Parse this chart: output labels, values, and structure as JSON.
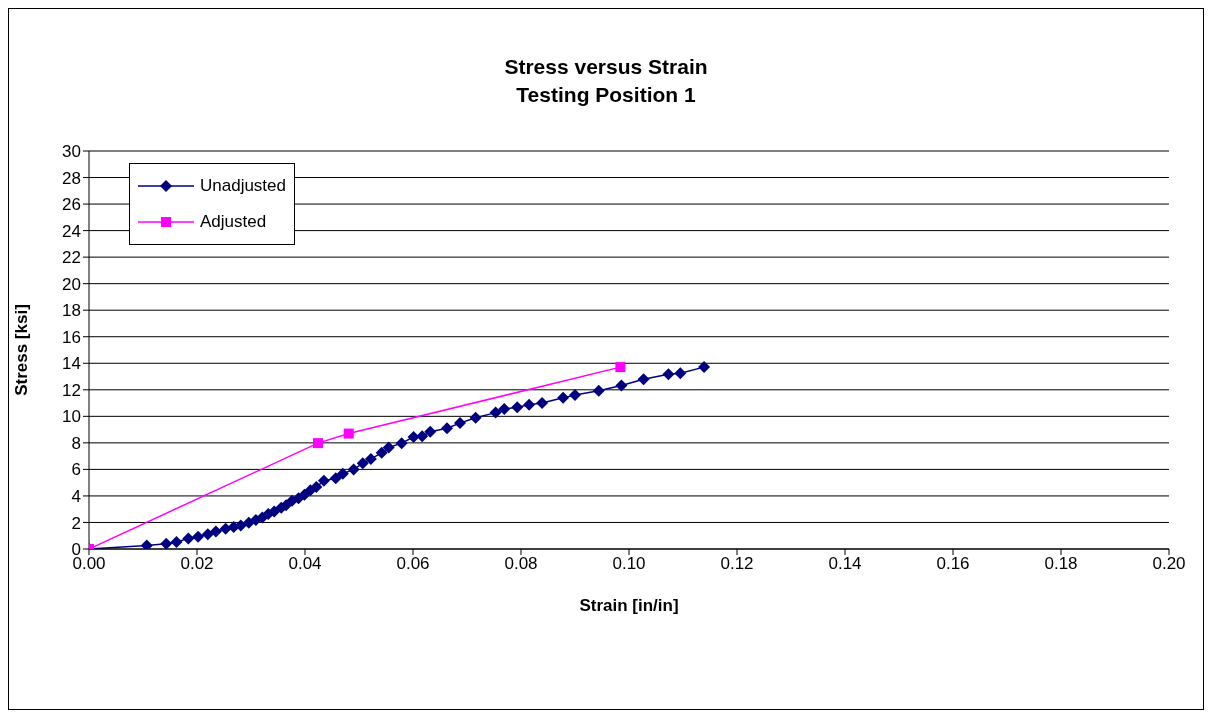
{
  "chart_data": {
    "type": "line",
    "title": "Stress versus Strain",
    "subtitle": "Testing Position 1",
    "xlabel": "Strain [in/in]",
    "ylabel": "Stress [ksi]",
    "xlim": [
      0,
      0.2
    ],
    "xticks": [
      {
        "value": 0,
        "label": "0.00"
      },
      {
        "value": 0.02,
        "label": "0.02"
      },
      {
        "value": 0.04,
        "label": "0.04"
      },
      {
        "value": 0.06,
        "label": "0.06"
      },
      {
        "value": 0.08,
        "label": "0.08"
      },
      {
        "value": 0.1,
        "label": "0.10"
      },
      {
        "value": 0.12,
        "label": "0.12"
      },
      {
        "value": 0.14,
        "label": "0.14"
      },
      {
        "value": 0.16,
        "label": "0.16"
      },
      {
        "value": 0.18,
        "label": "0.18"
      },
      {
        "value": 0.2,
        "label": "0.20"
      }
    ],
    "ylim": [
      0,
      30
    ],
    "yticks": [
      0,
      2,
      4,
      6,
      8,
      10,
      12,
      14,
      16,
      18,
      20,
      22,
      24,
      26,
      28,
      30
    ],
    "grid": "y",
    "legend": "top left",
    "series": [
      {
        "name": "Unadjusted",
        "color": "#000080",
        "marker": "diamond",
        "x": [
          0,
          0.0107,
          0.0143,
          0.0162,
          0.0184,
          0.0202,
          0.022,
          0.0235,
          0.0253,
          0.0268,
          0.0281,
          0.0296,
          0.0309,
          0.0321,
          0.0332,
          0.0343,
          0.0356,
          0.0365,
          0.0376,
          0.0388,
          0.0399,
          0.041,
          0.0421,
          0.0435,
          0.0457,
          0.047,
          0.049,
          0.0507,
          0.0522,
          0.0542,
          0.0555,
          0.0579,
          0.0601,
          0.0617,
          0.0632,
          0.0663,
          0.0687,
          0.0716,
          0.0753,
          0.0769,
          0.0793,
          0.0815,
          0.0839,
          0.0878,
          0.09,
          0.0944,
          0.0986,
          0.1027,
          0.1073,
          0.1095,
          0.1139
        ],
        "values": [
          0,
          0.26,
          0.4,
          0.53,
          0.79,
          0.92,
          1.12,
          1.32,
          1.52,
          1.65,
          1.78,
          1.98,
          2.18,
          2.37,
          2.64,
          2.83,
          3.1,
          3.3,
          3.63,
          3.82,
          4.09,
          4.42,
          4.68,
          5.14,
          5.34,
          5.67,
          6.0,
          6.46,
          6.79,
          7.25,
          7.65,
          7.98,
          8.44,
          8.5,
          8.83,
          9.1,
          9.49,
          9.89,
          10.28,
          10.55,
          10.68,
          10.88,
          11.01,
          11.4,
          11.6,
          11.93,
          12.33,
          12.79,
          13.18,
          13.25,
          13.71
        ]
      },
      {
        "name": "Adjusted",
        "color": "#ff00ff",
        "marker": "square",
        "x": [
          0,
          0.0424,
          0.0481,
          0.0984
        ],
        "values": [
          0,
          7.98,
          8.7,
          13.71
        ]
      }
    ]
  }
}
